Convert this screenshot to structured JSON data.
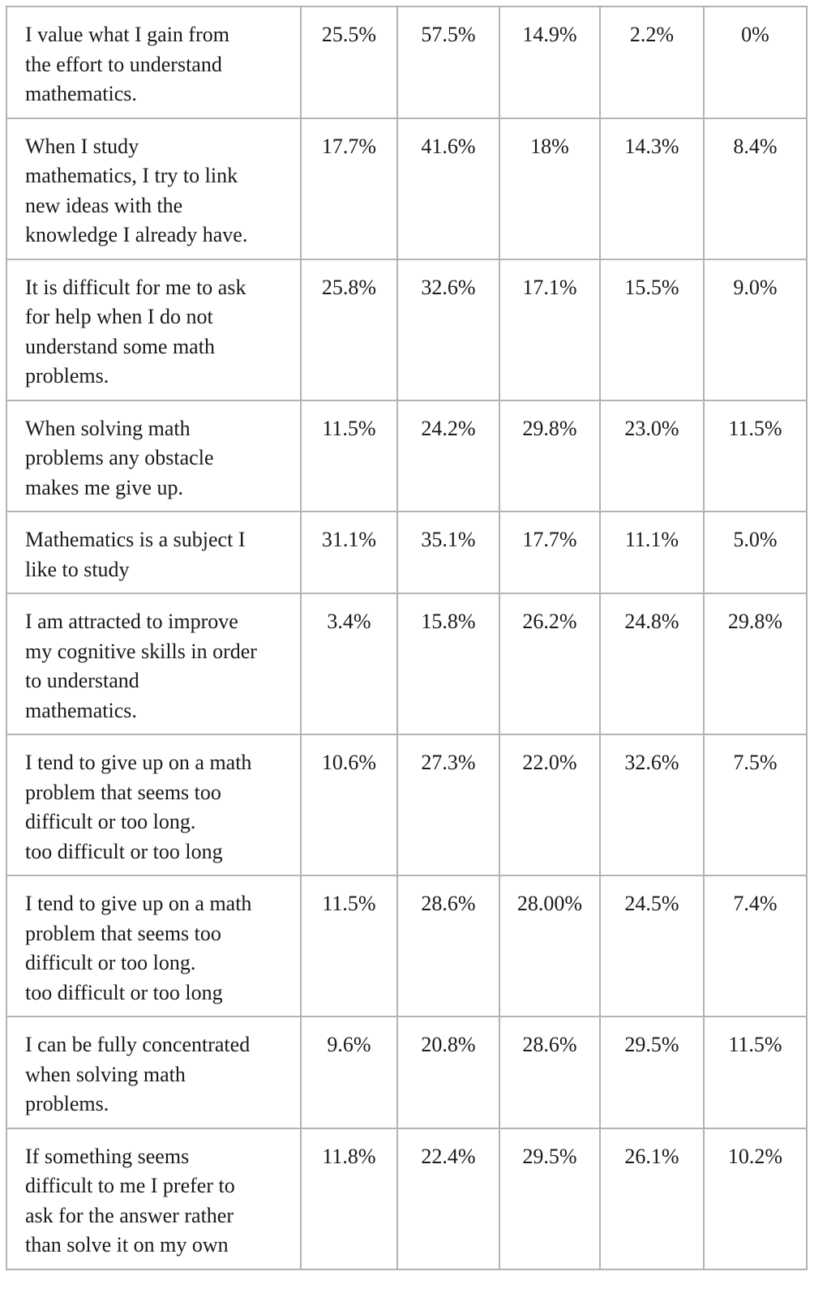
{
  "rows": [
    {
      "statement": [
        "I value what I gain from",
        "the effort to understand",
        "mathematics."
      ],
      "values": [
        "25.5%",
        "57.5%",
        "14.9%",
        "2.2%",
        "0%"
      ]
    },
    {
      "statement": [
        "When I study",
        "mathematics, I try to link",
        "new ideas with the",
        "knowledge I already have."
      ],
      "values": [
        "17.7%",
        "41.6%",
        "18%",
        "14.3%",
        "8.4%"
      ]
    },
    {
      "statement": [
        "It is difficult for me to ask",
        "for help when I do not",
        "understand some math",
        "problems."
      ],
      "values": [
        "25.8%",
        "32.6%",
        "17.1%",
        "15.5%",
        "9.0%"
      ]
    },
    {
      "statement": [
        "When solving math",
        "problems any obstacle",
        "makes me give up."
      ],
      "values": [
        "11.5%",
        "24.2%",
        "29.8%",
        "23.0%",
        "11.5%"
      ]
    },
    {
      "statement": [
        "Mathematics is a subject I",
        "like to study"
      ],
      "values": [
        "31.1%",
        "35.1%",
        "17.7%",
        "11.1%",
        "5.0%"
      ]
    },
    {
      "statement": [
        "I am attracted to improve",
        "my cognitive skills in order",
        "to understand",
        "mathematics."
      ],
      "values": [
        "3.4%",
        "15.8%",
        "26.2%",
        "24.8%",
        "29.8%"
      ]
    },
    {
      "statement": [
        "I tend to give up on a math",
        "problem that seems too",
        "difficult or too long.",
        "too difficult or too long"
      ],
      "values": [
        "10.6%",
        "27.3%",
        "22.0%",
        "32.6%",
        "7.5%"
      ]
    },
    {
      "statement": [
        "I tend to give up on a math",
        "problem that seems too",
        "difficult or too long.",
        "too difficult or too long"
      ],
      "values": [
        "11.5%",
        "28.6%",
        "28.00%",
        "24.5%",
        "7.4%"
      ]
    },
    {
      "statement": [
        "I can be fully concentrated",
        "when solving math",
        "problems."
      ],
      "values": [
        "9.6%",
        "20.8%",
        "28.6%",
        "29.5%",
        "11.5%"
      ]
    },
    {
      "statement": [
        "If something seems",
        "difficult to me I prefer to",
        "ask for the answer rather",
        "than solve it on my own"
      ],
      "values": [
        "11.8%",
        "22.4%",
        "29.5%",
        "26.1%",
        "10.2%"
      ]
    }
  ]
}
